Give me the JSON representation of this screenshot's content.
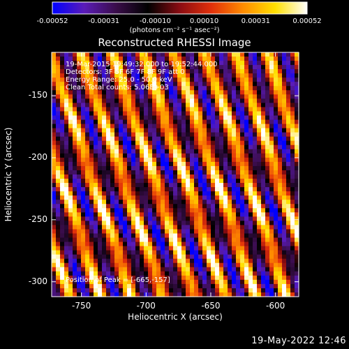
{
  "chart_data": {
    "type": "heatmap",
    "title": "Reconstructed RHESSI Image",
    "xlabel": "Heliocentric X (arcsec)",
    "ylabel": "Heliocentric Y (arcsec)",
    "xlim": [
      -773,
      -582
    ],
    "ylim": [
      -312,
      -115
    ],
    "x_ticks": [
      -750,
      -700,
      -650,
      -600
    ],
    "y_ticks": [
      -150,
      -200,
      -250,
      -300
    ],
    "x_tick_labels": [
      "-750",
      "-700",
      "-650",
      "-600"
    ],
    "y_tick_labels": [
      "-150",
      "-200",
      "-250",
      "-300"
    ],
    "colorbar": {
      "range": [
        -0.00052,
        0.00052
      ],
      "ticks": [
        -0.00052,
        -0.00031,
        -0.0001,
        0.0001,
        0.00031,
        0.00052
      ],
      "tick_labels": [
        "-0.00052",
        "-0.00031",
        "-0.00010",
        "0.00010",
        "0.00031",
        "0.00052"
      ],
      "units": "(photons cm⁻² s⁻¹ asec⁻²)",
      "colormap": [
        "#0000ff",
        "#5a1bb8",
        "#3a0d4a",
        "#000000",
        "#8a0c12",
        "#e2300a",
        "#ff8c00",
        "#ffe000",
        "#ffffff"
      ]
    },
    "annotations": [
      "19-Mar-2015 19:49:32.000 to 19:52:44.000",
      "Detectors: 3F 5F 6F 7F 8F 9F att 0",
      "Energy Range: 25.0 - 50.0 keV",
      "Clean     Total counts: 5.06E+03",
      "Position of Peak = [-665,-157]"
    ],
    "peak": [
      -665,
      -157
    ],
    "pattern": {
      "description_type": "diagonal stripes",
      "stripe_period_arcsec": 24,
      "stripe_slope": 3.1,
      "peak_value": 0.00052
    }
  },
  "footer": {
    "timestamp": "19-May-2022 12:46"
  }
}
